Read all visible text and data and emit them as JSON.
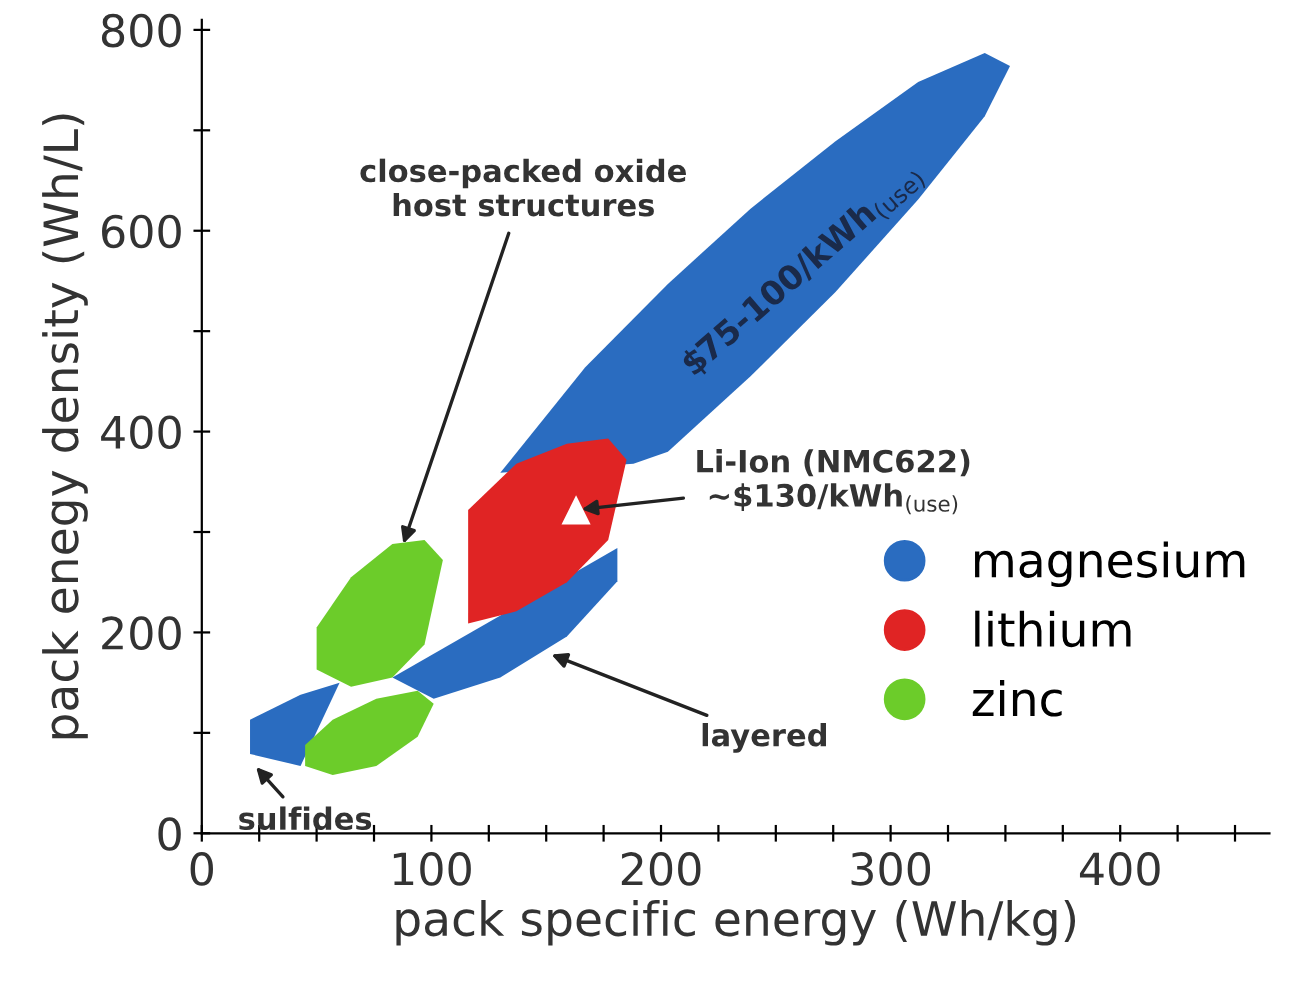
{
  "chart_data": {
    "type": "area",
    "xlabel": "pack specific energy (Wh/kg)",
    "ylabel": "pack enegy density (Wh/L)",
    "xlim": [
      0,
      465
    ],
    "ylim": [
      0,
      810
    ],
    "xticks": [
      0,
      {
        "value": 25,
        "label": null
      },
      {
        "value": 50,
        "label": null
      },
      {
        "value": 75,
        "label": null
      },
      100,
      {
        "value": 125,
        "label": null
      },
      {
        "value": 150,
        "label": null
      },
      {
        "value": 175,
        "label": null
      },
      200,
      {
        "value": 225,
        "label": null
      },
      {
        "value": 250,
        "label": null
      },
      {
        "value": 275,
        "label": null
      },
      300,
      {
        "value": 325,
        "label": null
      },
      {
        "value": 350,
        "label": null
      },
      {
        "value": 375,
        "label": null
      },
      400,
      {
        "value": 425,
        "label": null
      },
      {
        "value": 450,
        "label": null
      }
    ],
    "yticks": [
      0,
      {
        "value": 100,
        "label": null
      },
      200,
      {
        "value": 300,
        "label": null
      },
      400,
      {
        "value": 500,
        "label": null
      },
      600,
      {
        "value": 700,
        "label": null
      },
      800
    ],
    "grid": false,
    "legend": "bottom right",
    "series": [
      {
        "color": "#2a6cc0",
        "x": [
          130,
          167,
          203,
          239,
          276,
          312,
          341,
          352,
          341,
          312,
          276,
          239,
          203,
          188
        ],
        "values": [
          359,
          464,
          547,
          622,
          689,
          748,
          777,
          764,
          714,
          631,
          539,
          455,
          380,
          368
        ]
      },
      {
        "color": "#2a6cc0",
        "x": [
          83,
          101,
          130,
          159,
          181,
          181
        ],
        "values": [
          155,
          134,
          155,
          196,
          251,
          284
        ]
      },
      {
        "name": "magnesium",
        "color": "#2a6cc0",
        "x": [
          21,
          43,
          60,
          43,
          21
        ],
        "values": [
          113,
          138,
          150,
          67,
          79
        ]
      },
      {
        "name": "lithium",
        "color": "#e02424",
        "x": [
          116,
          137,
          159,
          177,
          185,
          177,
          159,
          137,
          116
        ],
        "values": [
          322,
          368,
          388,
          393,
          372,
          292,
          250,
          221,
          209
        ]
      },
      {
        "name": "zinc",
        "color": "#6ccc2a",
        "x": [
          50,
          65,
          83,
          97,
          105,
          97,
          83,
          65,
          50
        ],
        "values": [
          205,
          255,
          288,
          292,
          272,
          188,
          155,
          146,
          163
        ]
      },
      {
        "color": "#6ccc2a",
        "x": [
          45,
          57,
          76,
          94,
          101,
          94,
          76,
          57,
          45
        ],
        "values": [
          88,
          113,
          134,
          142,
          129,
          96,
          67,
          58,
          67
        ]
      },
      {
        "type": "scatter",
        "marker": "triangle",
        "color": "#ffffff",
        "x": [
          163
        ],
        "values": [
          322
        ]
      }
    ],
    "annotations": [
      {
        "text": "close-packed oxide\nhost structures",
        "x": 87,
        "y": 283
      },
      {
        "text": "Li-Ion (NMC622)\n~$130/kWh$_{(use)}$",
        "x": 163,
        "y": 322
      },
      {
        "text": "layered",
        "x": 150,
        "y": 180
      },
      {
        "text": "sulfides",
        "x": 22,
        "y": 70
      },
      "$75-100/kWh$_{(use)}$"
    ]
  }
}
